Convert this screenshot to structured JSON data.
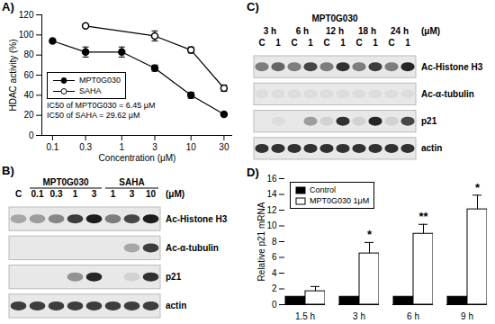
{
  "chart_data": [
    {
      "type": "line",
      "title": "A)",
      "xlabel": "Concentration (μM)",
      "ylabel": "HDAC activity (%)",
      "log": "x",
      "xlim": [
        0.07,
        40
      ],
      "xticks": [
        0.1,
        0.3,
        1,
        3,
        10,
        30
      ],
      "ylim": [
        0,
        120
      ],
      "yticks": [
        0,
        20,
        40,
        60,
        80,
        100,
        120
      ],
      "legend": "lower left",
      "annotations": [
        "IC50 of MPT0G030 = 6.45 μM",
        "IC50 of SAHA = 29.62 μM"
      ],
      "series": [
        {
          "name": "MPT0G030",
          "color": "#000000",
          "marker": "circle",
          "x": [
            0.1,
            0.3,
            1,
            3,
            10,
            30
          ],
          "values": [
            94,
            83,
            83,
            67,
            40,
            21
          ],
          "errors": [
            null,
            5,
            5,
            3,
            3,
            null
          ]
        },
        {
          "name": "SAHA",
          "color": "#000000",
          "marker": "open_circle",
          "x": [
            0.3,
            3,
            10,
            30
          ],
          "values": [
            109,
            99,
            85,
            47
          ],
          "errors": [
            null,
            5,
            3,
            3
          ]
        }
      ]
    },
    {
      "type": "blot",
      "title": "B)",
      "unit": "(μM)",
      "lanes": [
        "C",
        "0.1",
        "0.3",
        "1",
        "3",
        "1",
        "3",
        "10"
      ],
      "lane_groups": [
        null,
        "MPT0G030",
        "MPT0G030",
        "MPT0G030",
        "MPT0G030",
        "SAHA",
        "SAHA",
        "SAHA"
      ],
      "rows": [
        {
          "name": "Ac-Histone H3",
          "intensity": [
            0.3,
            0.35,
            0.45,
            0.8,
            0.95,
            0.5,
            0.75,
            0.95
          ]
        },
        {
          "name": "Ac-α-tubulin",
          "intensity": [
            0,
            0,
            0,
            0,
            0,
            0,
            0.3,
            0.8
          ]
        },
        {
          "name": "p21",
          "intensity": [
            0,
            0,
            0,
            0.4,
            0.9,
            0,
            0.1,
            0.85
          ]
        },
        {
          "name": "actin",
          "intensity": [
            0.8,
            0.8,
            0.8,
            0.8,
            0.8,
            0.8,
            0.8,
            0.8
          ]
        }
      ]
    },
    {
      "type": "blot",
      "title": "C)",
      "header": "MPT0G030",
      "unit": "(μM)",
      "lanes": [
        "C",
        "1",
        "C",
        "1",
        "C",
        "1",
        "C",
        "1",
        "C",
        "1"
      ],
      "lane_groups": [
        "3 h",
        "3 h",
        "6 h",
        "6 h",
        "12 h",
        "12 h",
        "18 h",
        "18 h",
        "24 h",
        "24 h"
      ],
      "rows": [
        {
          "name": "Ac-Histone H3",
          "intensity": [
            0.5,
            0.6,
            0.5,
            0.75,
            0.5,
            0.85,
            0.5,
            0.8,
            0.5,
            0.9
          ]
        },
        {
          "name": "Ac-α-tubulin",
          "intensity": [
            0.05,
            0.05,
            0.05,
            0.05,
            0.05,
            0.05,
            0.05,
            0.05,
            0.05,
            0.05
          ]
        },
        {
          "name": "p21",
          "intensity": [
            0,
            0.05,
            0,
            0.35,
            0.1,
            0.85,
            0.1,
            0.9,
            0.1,
            0.75
          ]
        },
        {
          "name": "actin",
          "intensity": [
            0.85,
            0.85,
            0.85,
            0.85,
            0.85,
            0.85,
            0.85,
            0.85,
            0.85,
            0.85
          ]
        }
      ]
    },
    {
      "type": "bar",
      "title": "D)",
      "ylabel": "Relative p21 mRNA",
      "categories": [
        "1.5 h",
        "3 h",
        "6 h",
        "9 h"
      ],
      "ylim": [
        0,
        16
      ],
      "yticks": [
        0,
        2,
        4,
        6,
        8,
        10,
        12,
        14,
        16
      ],
      "legend": "upper left",
      "series": [
        {
          "name": "Control",
          "color": "#000000",
          "values": [
            1,
            1,
            1,
            1
          ]
        },
        {
          "name": "MPT0G030 1μM",
          "color": "#ffffff",
          "values": [
            1.7,
            6.5,
            9,
            12.1
          ],
          "errors": [
            0.6,
            1.4,
            1.2,
            1.8
          ],
          "annotations": [
            null,
            "*",
            "**",
            "*"
          ]
        }
      ]
    }
  ]
}
